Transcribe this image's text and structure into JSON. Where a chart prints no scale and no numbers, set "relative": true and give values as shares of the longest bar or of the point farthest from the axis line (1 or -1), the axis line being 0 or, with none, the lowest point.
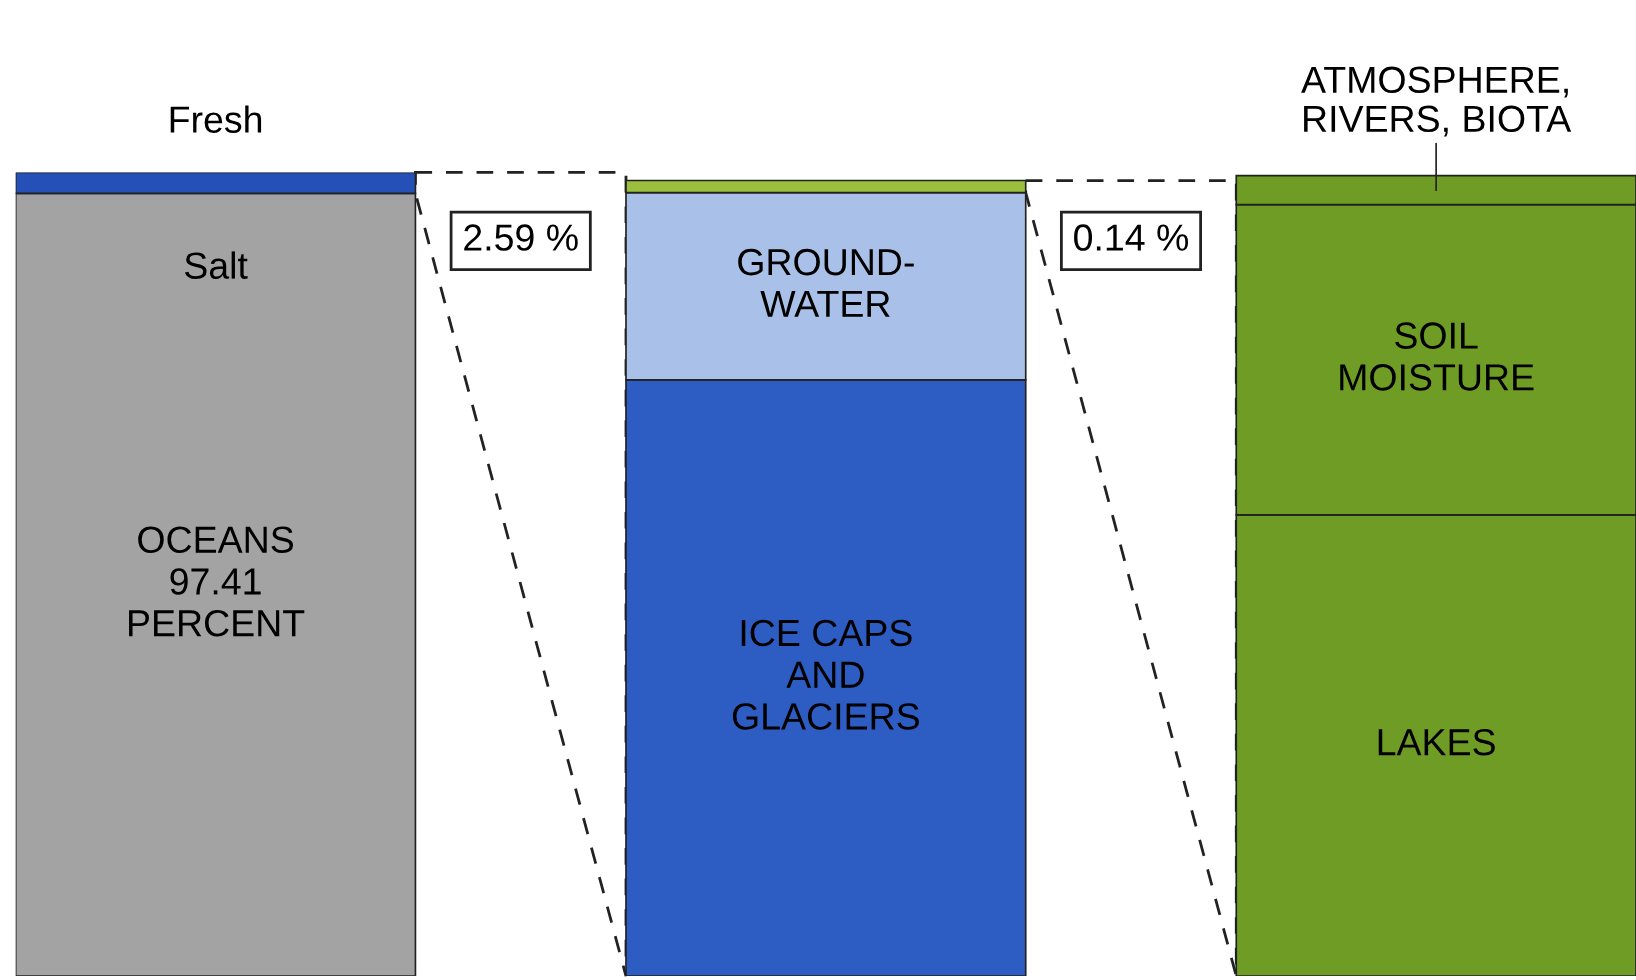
{
  "chart_data": {
    "type": "bar",
    "stacked": true,
    "relative": true,
    "legend": false,
    "categories": [
      null,
      null,
      null
    ],
    "series": [
      {
        "name": "OCEANS\n97.41\nPERCENT",
        "color": "#a3a3a3",
        "values": [
          0.9741,
          null,
          null
        ]
      },
      {
        "name": "Fresh",
        "color": "#2450b8",
        "values": [
          0.0259,
          null,
          null
        ]
      },
      {
        "name": "ICE CAPS\nAND\nGLACIERS",
        "color": "#2d5cc2",
        "values": [
          null,
          0.742,
          null
        ]
      },
      {
        "name": "GROUND-\nWATER",
        "color": "#a9c1e8",
        "values": [
          null,
          0.233,
          null
        ]
      },
      {
        "color": "#9bbf3c",
        "values": [
          null,
          0.015,
          null
        ]
      },
      {
        "name": "LAKES",
        "color": "#6f9c25",
        "values": [
          null,
          null,
          0.574
        ]
      },
      {
        "name": "SOIL\nMOISTURE",
        "color": "#6f9c25",
        "values": [
          null,
          null,
          0.386
        ]
      },
      {
        "name": "ATMOSPHERE,\nRIVERS, BIOTA",
        "color": "#6f9c25",
        "values": [
          null,
          null,
          0.036
        ]
      }
    ],
    "annotations": [
      "Salt",
      "2.59 %",
      "0.14 %"
    ]
  }
}
